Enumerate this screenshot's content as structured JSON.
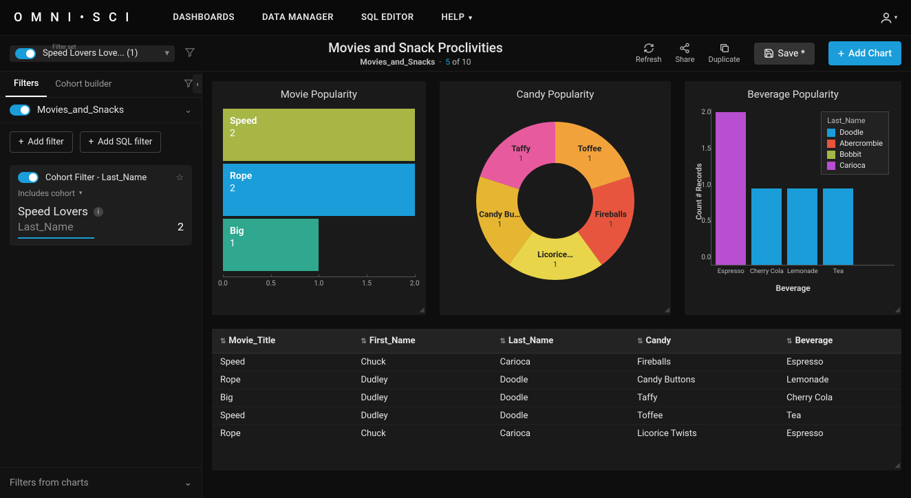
{
  "brand": "O M N I • S C I",
  "nav": {
    "dashboards": "DASHBOARDS",
    "data_manager": "DATA MANAGER",
    "sql_editor": "SQL EDITOR",
    "help": "HELP"
  },
  "header": {
    "filterset_label": "Filter set",
    "filterset_name": "Speed Lovers Love... (1)",
    "title": "Movies and Snack Proclivities",
    "subtitle_name": "Movies_and_Snacks",
    "count_current": "5",
    "count_total": "10",
    "count_of": " of ",
    "refresh": "Refresh",
    "share": "Share",
    "duplicate": "Duplicate",
    "save": "Save *",
    "add_chart": "Add Chart"
  },
  "sidebar": {
    "tab_filters": "Filters",
    "tab_cohort": "Cohort builder",
    "datasource": "Movies_and_Snacks",
    "add_filter": "Add filter",
    "add_sql": "Add SQL filter",
    "cohort_title": "Cohort Filter - Last_Name",
    "includes": "Includes cohort",
    "cohort_name": "Speed Lovers",
    "cohort_field": "Last_Name",
    "cohort_count": "2",
    "filters_from_charts": "Filters from charts"
  },
  "movie_chart": {
    "title": "Movie Popularity",
    "bars": [
      {
        "label": "Speed",
        "value": "2",
        "width_pct": 100,
        "color": "#a8b646"
      },
      {
        "label": "Rope",
        "value": "2",
        "width_pct": 100,
        "color": "#1a9dd9"
      },
      {
        "label": "Big",
        "value": "1",
        "width_pct": 50,
        "color": "#2fa88f"
      }
    ],
    "axis": [
      "0.0",
      "0.5",
      "1.0",
      "1.5",
      "2.0"
    ]
  },
  "candy_chart": {
    "title": "Candy Popularity",
    "slices": [
      {
        "label": "Toffee",
        "value": "1",
        "color": "#f2a23a"
      },
      {
        "label": "Fireballs",
        "value": "1",
        "color": "#e8553e"
      },
      {
        "label": "Licorice…",
        "value": "1",
        "color": "#e8d54a"
      },
      {
        "label": "Candy Bu…",
        "value": "1",
        "color": "#e6b532"
      },
      {
        "label": "Taffy",
        "value": "1",
        "color": "#e85a9e"
      }
    ]
  },
  "bev_chart": {
    "title": "Beverage Popularity",
    "ylabel": "Count # Records",
    "xlabel": "Beverage",
    "ymax": 2.0,
    "yticks": [
      "2.0",
      "1.5",
      "1.0",
      "0.5",
      "0.0"
    ],
    "bars": [
      {
        "label": "Espresso",
        "value": 2.0,
        "color": "#b84fd1"
      },
      {
        "label": "Cherry Cola",
        "value": 1.0,
        "color": "#1a9dd9"
      },
      {
        "label": "Lemonade",
        "value": 1.0,
        "color": "#1a9dd9"
      },
      {
        "label": "Tea",
        "value": 1.0,
        "color": "#1a9dd9"
      }
    ],
    "legend_title": "Last_Name",
    "legend": [
      {
        "label": "Doodle",
        "color": "#1a9dd9"
      },
      {
        "label": "Abercrombie",
        "color": "#e8553e"
      },
      {
        "label": "Bobbit",
        "color": "#a8b646"
      },
      {
        "label": "Carioca",
        "color": "#b84fd1"
      }
    ]
  },
  "table": {
    "columns": [
      "Movie_Title",
      "First_Name",
      "Last_Name",
      "Candy",
      "Beverage"
    ],
    "rows": [
      [
        "Speed",
        "Chuck",
        "Carioca",
        "Fireballs",
        "Espresso"
      ],
      [
        "Rope",
        "Dudley",
        "Doodle",
        "Candy Buttons",
        "Lemonade"
      ],
      [
        "Big",
        "Dudley",
        "Doodle",
        "Taffy",
        "Cherry Cola"
      ],
      [
        "Speed",
        "Dudley",
        "Doodle",
        "Toffee",
        "Tea"
      ],
      [
        "Rope",
        "Chuck",
        "Carioca",
        "Licorice Twists",
        "Espresso"
      ]
    ]
  }
}
